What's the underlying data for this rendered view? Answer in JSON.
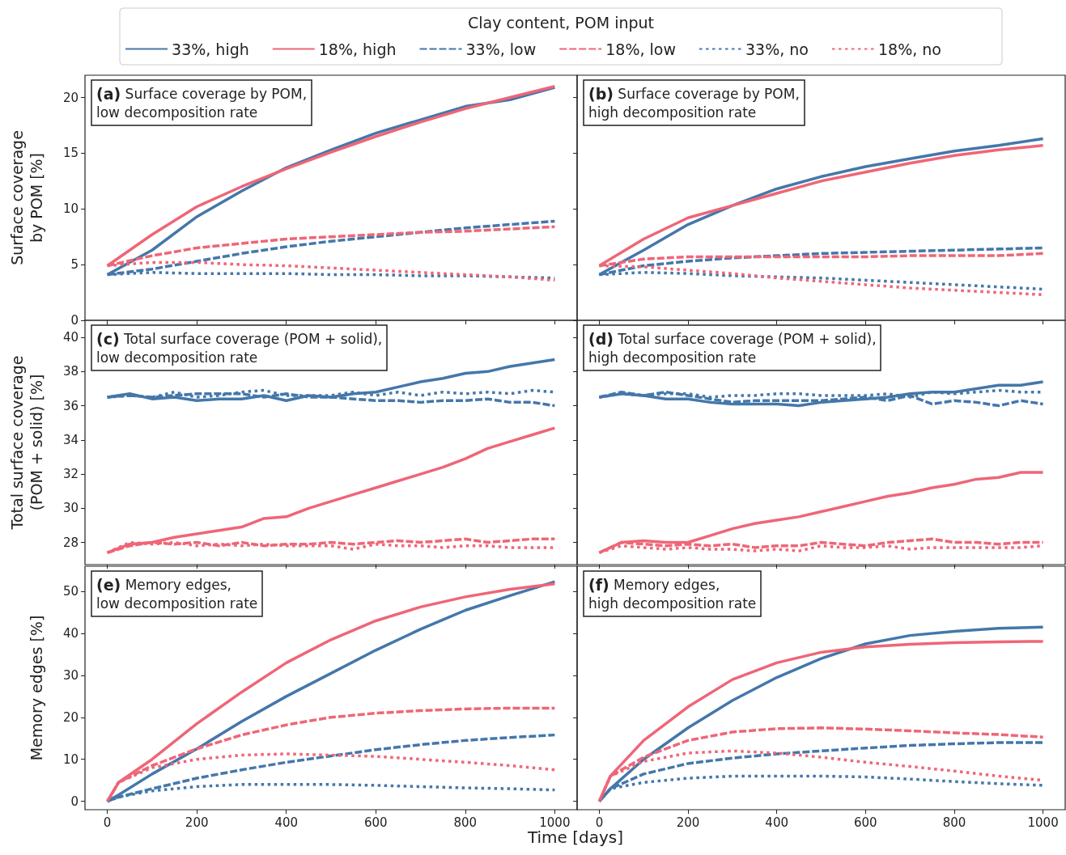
{
  "chart_data": [
    {
      "type": "line",
      "title": "(a) Surface coverage by POM,\nlow decomposition rate",
      "ylabel": "Surface coverage\nby POM [%]",
      "legend_title": "Clay content, POM input",
      "legend": "top",
      "marker": "none",
      "tick_labels": "y",
      "xlim": [
        -50,
        1050
      ],
      "xticks": [
        0,
        200,
        400,
        600,
        800,
        1000
      ],
      "ylim": [
        0,
        22
      ],
      "yticks": [
        0,
        5,
        10,
        15,
        20
      ],
      "x": [
        0,
        100,
        200,
        300,
        400,
        500,
        600,
        700,
        800,
        900,
        1000
      ],
      "series": [
        {
          "name": "33%, high",
          "color": "#4477aa",
          "line_style": "solid",
          "values": [
            4.1,
            6.3,
            9.3,
            11.6,
            13.7,
            15.3,
            16.8,
            18.0,
            19.2,
            19.8,
            20.9
          ]
        },
        {
          "name": "18%, high",
          "color": "#ee6677",
          "line_style": "solid",
          "values": [
            4.9,
            7.7,
            10.2,
            12.0,
            13.6,
            15.1,
            16.5,
            17.8,
            19.0,
            20.0,
            21.0
          ]
        },
        {
          "name": "33%, low",
          "color": "#4477aa",
          "line_style": "dashed",
          "values": [
            4.1,
            4.6,
            5.3,
            6.0,
            6.6,
            7.1,
            7.5,
            7.9,
            8.3,
            8.6,
            8.9
          ]
        },
        {
          "name": "18%, low",
          "color": "#ee6677",
          "line_style": "dashed",
          "values": [
            4.9,
            5.8,
            6.5,
            6.9,
            7.3,
            7.5,
            7.7,
            7.9,
            8.0,
            8.2,
            8.4
          ]
        },
        {
          "name": "33%, no",
          "color": "#4477aa",
          "line_style": "dotted",
          "values": [
            4.1,
            4.3,
            4.2,
            4.2,
            4.2,
            4.1,
            4.1,
            4.0,
            4.0,
            3.9,
            3.8
          ]
        },
        {
          "name": "18%, no",
          "color": "#ee6677",
          "line_style": "dotted",
          "values": [
            4.9,
            5.2,
            5.2,
            5.0,
            4.9,
            4.7,
            4.5,
            4.3,
            4.1,
            3.9,
            3.6
          ]
        }
      ]
    },
    {
      "type": "line",
      "title": "(b) Surface coverage by POM,\nhigh decomposition rate",
      "marker": "none",
      "tick_labels": false,
      "xlim": [
        -50,
        1050
      ],
      "xticks": [
        0,
        200,
        400,
        600,
        800,
        1000
      ],
      "ylim": [
        0,
        22
      ],
      "yticks": [
        0,
        5,
        10,
        15,
        20
      ],
      "x": [
        0,
        100,
        200,
        300,
        400,
        500,
        600,
        700,
        800,
        900,
        1000
      ],
      "series": [
        {
          "color": "#4477aa",
          "line_style": "solid",
          "values": [
            4.1,
            6.3,
            8.6,
            10.3,
            11.8,
            12.9,
            13.8,
            14.5,
            15.2,
            15.7,
            16.3
          ]
        },
        {
          "color": "#ee6677",
          "line_style": "solid",
          "values": [
            4.9,
            7.3,
            9.2,
            10.3,
            11.4,
            12.5,
            13.3,
            14.1,
            14.8,
            15.3,
            15.7
          ]
        },
        {
          "color": "#4477aa",
          "line_style": "dashed",
          "values": [
            4.1,
            4.9,
            5.3,
            5.6,
            5.8,
            6.0,
            6.1,
            6.2,
            6.3,
            6.4,
            6.5
          ]
        },
        {
          "color": "#ee6677",
          "line_style": "dashed",
          "values": [
            4.9,
            5.5,
            5.7,
            5.7,
            5.7,
            5.7,
            5.7,
            5.8,
            5.8,
            5.8,
            6.0
          ]
        },
        {
          "color": "#4477aa",
          "line_style": "dotted",
          "values": [
            4.1,
            4.3,
            4.2,
            4.0,
            3.9,
            3.8,
            3.6,
            3.4,
            3.2,
            3.0,
            2.8
          ]
        },
        {
          "color": "#ee6677",
          "line_style": "dotted",
          "values": [
            4.9,
            4.8,
            4.5,
            4.2,
            3.8,
            3.5,
            3.2,
            2.9,
            2.7,
            2.5,
            2.3
          ]
        }
      ]
    },
    {
      "type": "line",
      "title": "(c) Total surface coverage (POM + solid),\nlow decomposition rate",
      "ylabel": "Total surface coverage\n(POM + solid) [%]",
      "marker": "none",
      "tick_labels": "y",
      "xlim": [
        -50,
        1050
      ],
      "xticks": [
        0,
        200,
        400,
        600,
        800,
        1000
      ],
      "ylim": [
        26.7,
        41
      ],
      "yticks": [
        28,
        30,
        32,
        34,
        36,
        38,
        40
      ],
      "x": [
        0,
        50,
        100,
        150,
        200,
        250,
        300,
        350,
        400,
        450,
        500,
        550,
        600,
        650,
        700,
        750,
        800,
        850,
        900,
        950,
        1000
      ],
      "series": [
        {
          "color": "#4477aa",
          "line_style": "solid",
          "values": [
            36.5,
            36.7,
            36.4,
            36.5,
            36.3,
            36.4,
            36.4,
            36.6,
            36.3,
            36.6,
            36.5,
            36.7,
            36.8,
            37.1,
            37.4,
            37.6,
            37.9,
            38.0,
            38.3,
            38.5,
            38.7
          ]
        },
        {
          "color": "#ee6677",
          "line_style": "solid",
          "values": [
            27.4,
            27.9,
            28.0,
            28.3,
            28.5,
            28.7,
            28.9,
            29.4,
            29.5,
            30.0,
            30.4,
            30.8,
            31.2,
            31.6,
            32.0,
            32.4,
            32.9,
            33.5,
            33.9,
            34.3,
            34.7
          ]
        },
        {
          "color": "#4477aa",
          "line_style": "dashed",
          "values": [
            36.5,
            36.6,
            36.5,
            36.6,
            36.7,
            36.7,
            36.7,
            36.5,
            36.7,
            36.5,
            36.5,
            36.4,
            36.3,
            36.3,
            36.2,
            36.3,
            36.3,
            36.4,
            36.2,
            36.2,
            36.0
          ]
        },
        {
          "color": "#ee6677",
          "line_style": "dashed",
          "values": [
            27.4,
            27.8,
            28.0,
            27.9,
            28.0,
            27.8,
            28.0,
            27.8,
            27.9,
            27.9,
            28.0,
            27.9,
            28.0,
            28.1,
            28.0,
            28.1,
            28.2,
            28.0,
            28.1,
            28.2,
            28.2
          ]
        },
        {
          "color": "#4477aa",
          "line_style": "dotted",
          "values": [
            36.5,
            36.6,
            36.5,
            36.8,
            36.5,
            36.6,
            36.8,
            36.9,
            36.6,
            36.6,
            36.6,
            36.8,
            36.6,
            36.8,
            36.6,
            36.8,
            36.7,
            36.8,
            36.7,
            36.9,
            36.8
          ]
        },
        {
          "color": "#ee6677",
          "line_style": "dotted",
          "values": [
            27.4,
            28.0,
            27.9,
            28.0,
            27.8,
            27.9,
            27.8,
            27.9,
            27.8,
            27.8,
            27.8,
            27.6,
            27.9,
            27.8,
            27.8,
            27.7,
            27.8,
            27.8,
            27.7,
            27.7,
            27.7
          ]
        }
      ]
    },
    {
      "type": "line",
      "title": "(d) Total surface coverage (POM + solid),\nhigh decomposition rate",
      "marker": "none",
      "tick_labels": false,
      "xlim": [
        -50,
        1050
      ],
      "xticks": [
        0,
        200,
        400,
        600,
        800,
        1000
      ],
      "ylim": [
        26.7,
        41
      ],
      "yticks": [
        28,
        30,
        32,
        34,
        36,
        38,
        40
      ],
      "x": [
        0,
        50,
        100,
        150,
        200,
        250,
        300,
        350,
        400,
        450,
        500,
        550,
        600,
        650,
        700,
        750,
        800,
        850,
        900,
        950,
        1000
      ],
      "series": [
        {
          "color": "#4477aa",
          "line_style": "solid",
          "values": [
            36.5,
            36.7,
            36.6,
            36.4,
            36.4,
            36.2,
            36.1,
            36.1,
            36.1,
            36.0,
            36.2,
            36.3,
            36.4,
            36.5,
            36.7,
            36.8,
            36.8,
            37.0,
            37.2,
            37.2,
            37.4
          ]
        },
        {
          "color": "#ee6677",
          "line_style": "solid",
          "values": [
            27.4,
            28.0,
            28.1,
            28.0,
            28.0,
            28.4,
            28.8,
            29.1,
            29.3,
            29.5,
            29.8,
            30.1,
            30.4,
            30.7,
            30.9,
            31.2,
            31.4,
            31.7,
            31.8,
            32.1,
            32.1
          ]
        },
        {
          "color": "#4477aa",
          "line_style": "dashed",
          "values": [
            36.5,
            36.8,
            36.6,
            36.8,
            36.6,
            36.4,
            36.2,
            36.3,
            36.3,
            36.3,
            36.3,
            36.4,
            36.5,
            36.3,
            36.6,
            36.1,
            36.3,
            36.2,
            36.0,
            36.3,
            36.1
          ]
        },
        {
          "color": "#ee6677",
          "line_style": "dashed",
          "values": [
            27.4,
            28.0,
            27.9,
            27.8,
            27.9,
            27.8,
            27.9,
            27.7,
            27.8,
            27.8,
            28.0,
            27.9,
            27.8,
            28.0,
            28.1,
            28.2,
            28.0,
            28.0,
            27.9,
            28.0,
            28.0
          ]
        },
        {
          "color": "#4477aa",
          "line_style": "dotted",
          "values": [
            36.5,
            36.7,
            36.6,
            36.7,
            36.7,
            36.5,
            36.6,
            36.6,
            36.7,
            36.7,
            36.6,
            36.6,
            36.6,
            36.7,
            36.5,
            36.8,
            36.7,
            36.8,
            36.9,
            36.8,
            36.8
          ]
        },
        {
          "color": "#ee6677",
          "line_style": "dotted",
          "values": [
            27.4,
            27.8,
            27.7,
            27.6,
            27.7,
            27.6,
            27.6,
            27.5,
            27.6,
            27.5,
            27.8,
            27.7,
            27.7,
            27.8,
            27.6,
            27.7,
            27.7,
            27.7,
            27.7,
            27.7,
            27.8
          ]
        }
      ]
    },
    {
      "type": "line",
      "title": "(e) Memory edges,\nlow decomposition rate",
      "ylabel": "Memory edges [%]",
      "xlabel": "Time [days]",
      "marker": "none",
      "xlim": [
        -50,
        1050
      ],
      "xticks": [
        0,
        200,
        400,
        600,
        800,
        1000
      ],
      "ylim": [
        -2,
        56
      ],
      "yticks": [
        0,
        10,
        20,
        30,
        40,
        50
      ],
      "x": [
        0,
        25,
        100,
        200,
        300,
        400,
        500,
        600,
        700,
        800,
        900,
        1000
      ],
      "series": [
        {
          "color": "#4477aa",
          "line_style": "solid",
          "values": [
            0,
            1.5,
            6.5,
            12.5,
            19,
            25,
            30.5,
            36,
            41,
            45.5,
            49,
            52.3
          ]
        },
        {
          "color": "#ee6677",
          "line_style": "solid",
          "values": [
            0,
            4.5,
            10,
            18.5,
            26,
            33,
            38.5,
            43,
            46.3,
            48.7,
            50.5,
            51.8
          ]
        },
        {
          "color": "#4477aa",
          "line_style": "dashed",
          "values": [
            0,
            1,
            3,
            5.5,
            7.5,
            9.3,
            10.8,
            12.3,
            13.5,
            14.5,
            15.2,
            15.8
          ]
        },
        {
          "color": "#ee6677",
          "line_style": "dashed",
          "values": [
            0,
            4.5,
            8.5,
            12.5,
            15.8,
            18.2,
            20,
            21,
            21.6,
            22,
            22.2,
            22.2
          ]
        },
        {
          "color": "#4477aa",
          "line_style": "dotted",
          "values": [
            0,
            1,
            2.5,
            3.5,
            4,
            4,
            4,
            3.8,
            3.5,
            3.2,
            3,
            2.7
          ]
        },
        {
          "color": "#ee6677",
          "line_style": "dotted",
          "values": [
            0,
            4.5,
            8,
            10,
            11,
            11.3,
            11,
            10.7,
            10,
            9.3,
            8.5,
            7.5
          ]
        }
      ]
    },
    {
      "type": "line",
      "title": "(f) Memory edges,\nhigh decomposition rate",
      "marker": "none",
      "tick_labels": "x",
      "xlim": [
        -50,
        1050
      ],
      "xticks": [
        0,
        200,
        400,
        600,
        800,
        1000
      ],
      "ylim": [
        -2,
        56
      ],
      "yticks": [
        0,
        10,
        20,
        30,
        40,
        50
      ],
      "x": [
        0,
        25,
        100,
        200,
        300,
        400,
        500,
        600,
        700,
        800,
        900,
        1000
      ],
      "series": [
        {
          "color": "#4477aa",
          "line_style": "solid",
          "values": [
            0,
            3,
            10,
            17.5,
            24,
            29.5,
            34,
            37.5,
            39.5,
            40.5,
            41.2,
            41.5
          ]
        },
        {
          "color": "#ee6677",
          "line_style": "solid",
          "values": [
            0,
            6,
            14.5,
            22.5,
            29,
            33,
            35.5,
            36.8,
            37.4,
            37.8,
            38,
            38.1
          ]
        },
        {
          "color": "#4477aa",
          "line_style": "dashed",
          "values": [
            0,
            3,
            6.5,
            9,
            10.3,
            11.3,
            12,
            12.7,
            13.3,
            13.7,
            14,
            14
          ]
        },
        {
          "color": "#ee6677",
          "line_style": "dashed",
          "values": [
            0,
            6,
            10.5,
            14.5,
            16.5,
            17.3,
            17.5,
            17.2,
            16.8,
            16.3,
            15.9,
            15.3
          ]
        },
        {
          "color": "#4477aa",
          "line_style": "dotted",
          "values": [
            0,
            3,
            4.5,
            5.5,
            6,
            6,
            6,
            5.8,
            5.3,
            4.7,
            4.2,
            3.8
          ]
        },
        {
          "color": "#ee6677",
          "line_style": "dotted",
          "values": [
            0,
            6,
            9.5,
            11.5,
            12,
            11.5,
            10.5,
            9.3,
            8.3,
            7.2,
            6,
            5
          ]
        }
      ]
    }
  ]
}
